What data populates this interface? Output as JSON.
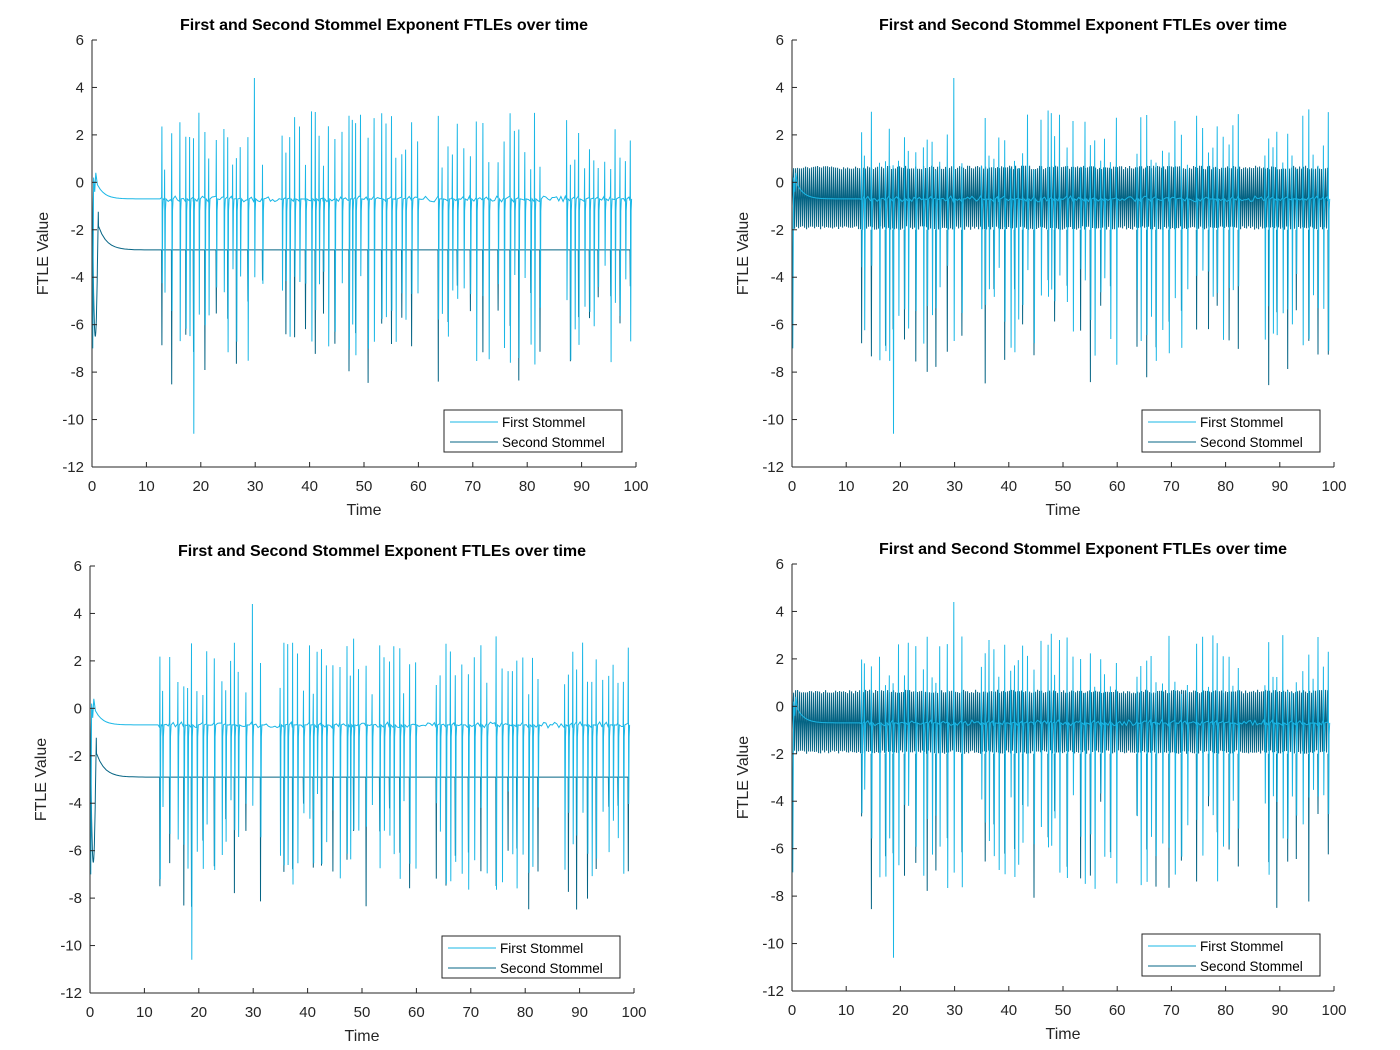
{
  "chart_data": [
    {
      "type": "line",
      "title": "First and Second Stommel Exponent FTLEs over time",
      "xlabel": "Time",
      "ylabel": "FTLE Value",
      "xlim": [
        0,
        100
      ],
      "ylim": [
        -12,
        6
      ],
      "xticks": [
        0,
        10,
        20,
        30,
        40,
        50,
        60,
        70,
        80,
        90,
        100
      ],
      "yticks": [
        6,
        4,
        2,
        0,
        -2,
        -4,
        -6,
        -8,
        -10,
        -12
      ],
      "grid": false,
      "legend_position": "bottom-right",
      "second_style": "flat",
      "series": [
        {
          "name": "First Stommel",
          "color": "#1ab7e6",
          "baseline": -0.7,
          "spike_max": 4.4,
          "spike_min": -10.6
        },
        {
          "name": "Second Stommel",
          "color": "#056484",
          "baseline": -2.85,
          "spike_min": -8.6
        }
      ]
    },
    {
      "type": "line",
      "title": "First and Second Stommel Exponent FTLEs over time",
      "xlabel": "Time",
      "ylabel": "FTLE Value",
      "xlim": [
        0,
        100
      ],
      "ylim": [
        -12,
        6
      ],
      "xticks": [
        0,
        10,
        20,
        30,
        40,
        50,
        60,
        70,
        80,
        90,
        100
      ],
      "yticks": [
        6,
        4,
        2,
        0,
        -2,
        -4,
        -6,
        -8,
        -10,
        -12
      ],
      "grid": false,
      "legend_position": "bottom-right",
      "second_style": "band",
      "series": [
        {
          "name": "First Stommel",
          "color": "#1ab7e6",
          "baseline": -0.7,
          "spike_max": 4.4,
          "spike_min": -10.6
        },
        {
          "name": "Second Stommel",
          "color": "#056484",
          "band": [
            -2.0,
            0.7
          ],
          "spike_min": -8.6
        }
      ]
    },
    {
      "type": "line",
      "title": "First and Second Stommel Exponent FTLEs over time",
      "xlabel": "Time",
      "ylabel": "FTLE Value",
      "xlim": [
        0,
        100
      ],
      "ylim": [
        -12,
        6
      ],
      "xticks": [
        0,
        10,
        20,
        30,
        40,
        50,
        60,
        70,
        80,
        90,
        100
      ],
      "yticks": [
        6,
        4,
        2,
        0,
        -2,
        -4,
        -6,
        -8,
        -10,
        -12
      ],
      "grid": false,
      "legend_position": "bottom-right",
      "second_style": "flat",
      "series": [
        {
          "name": "First Stommel",
          "color": "#1ab7e6",
          "baseline": -0.7,
          "spike_max": 4.4,
          "spike_min": -10.6
        },
        {
          "name": "Second Stommel",
          "color": "#056484",
          "baseline": -2.9,
          "spike_min": -8.6
        }
      ]
    },
    {
      "type": "line",
      "title": "First and Second Stommel Exponent FTLEs over time",
      "xlabel": "Time",
      "ylabel": "FTLE Value",
      "xlim": [
        0,
        100
      ],
      "ylim": [
        -12,
        6
      ],
      "xticks": [
        0,
        10,
        20,
        30,
        40,
        50,
        60,
        70,
        80,
        90,
        100
      ],
      "yticks": [
        6,
        4,
        2,
        0,
        -2,
        -4,
        -6,
        -8,
        -10,
        -12
      ],
      "grid": false,
      "legend_position": "bottom-right",
      "second_style": "band",
      "series": [
        {
          "name": "First Stommel",
          "color": "#1ab7e6",
          "baseline": -0.7,
          "spike_max": 4.4,
          "spike_min": -10.6
        },
        {
          "name": "Second Stommel",
          "color": "#056484",
          "band": [
            -2.0,
            0.7
          ],
          "spike_min": -8.6
        }
      ]
    }
  ]
}
